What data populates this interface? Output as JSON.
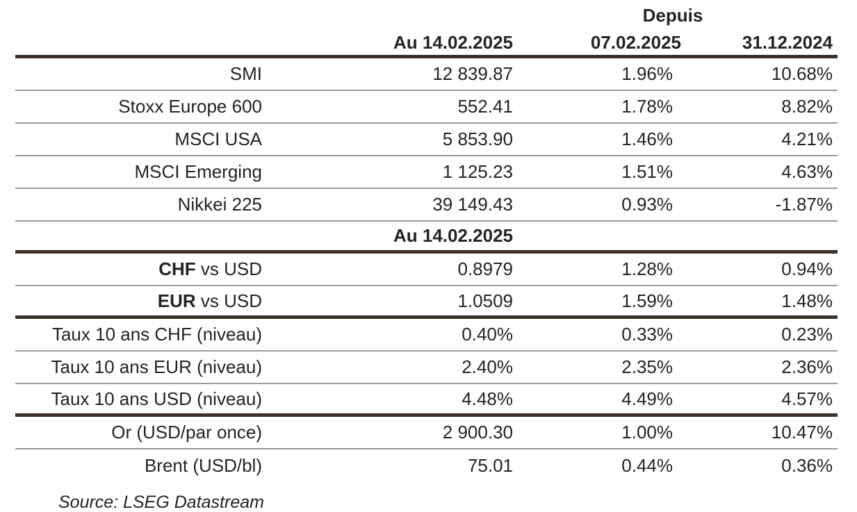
{
  "colors": {
    "text": "#262223",
    "thick_rule": "#3a3126",
    "thin_rule": "#9b9b9b",
    "background": "#ffffff"
  },
  "header": {
    "depuis_label": "Depuis",
    "col_date_main": "Au 14.02.2025",
    "col_date_week": "07.02.2025",
    "col_date_ytd": "31.12.2024"
  },
  "mid_header": {
    "label": "Au 14.02.2025"
  },
  "indices": [
    {
      "label": "SMI",
      "level": "12 839.87",
      "week": "1.96%",
      "ytd": "10.68%"
    },
    {
      "label": "Stoxx Europe 600",
      "level": "552.41",
      "week": "1.78%",
      "ytd": "8.82%"
    },
    {
      "label": "MSCI USA",
      "level": "5 853.90",
      "week": "1.46%",
      "ytd": "4.21%"
    },
    {
      "label": "MSCI Emerging",
      "level": "1 125.23",
      "week": "1.51%",
      "ytd": "4.63%"
    },
    {
      "label": "Nikkei 225",
      "level": "39 149.43",
      "week": "0.93%",
      "ytd": "-1.87%"
    }
  ],
  "fx": [
    {
      "label_bold": "CHF",
      "label_rest": " vs USD",
      "level": "0.8979",
      "week": "1.28%",
      "ytd": "0.94%"
    },
    {
      "label_bold": "EUR",
      "label_rest": " vs USD",
      "level": "1.0509",
      "week": "1.59%",
      "ytd": "1.48%"
    }
  ],
  "rates": [
    {
      "label": "Taux 10 ans CHF (niveau)",
      "level": "0.40%",
      "week": "0.33%",
      "ytd": "0.23%"
    },
    {
      "label": "Taux 10 ans EUR (niveau)",
      "level": "2.40%",
      "week": "2.35%",
      "ytd": "2.36%"
    },
    {
      "label": "Taux 10 ans USD (niveau)",
      "level": "4.48%",
      "week": "4.49%",
      "ytd": "4.57%"
    }
  ],
  "commodities": [
    {
      "label": "Or (USD/par once)",
      "level": "2 900.30",
      "week": "1.00%",
      "ytd": "10.47%"
    },
    {
      "label": "Brent (USD/bl)",
      "level": "75.01",
      "week": "0.44%",
      "ytd": "0.36%"
    }
  ],
  "source_note": "Source: LSEG Datastream",
  "chart_data": {
    "type": "table",
    "title": "",
    "columns": [
      "",
      "Au 14.02.2025",
      "Depuis 07.02.2025",
      "Depuis 31.12.2024"
    ],
    "depuis_header_spans": [
      "07.02.2025",
      "31.12.2024"
    ],
    "rows": [
      [
        "SMI",
        "12 839.87",
        "1.96%",
        "10.68%"
      ],
      [
        "Stoxx Europe 600",
        "552.41",
        "1.78%",
        "8.82%"
      ],
      [
        "MSCI USA",
        "5 853.90",
        "1.46%",
        "4.21%"
      ],
      [
        "MSCI Emerging",
        "1 125.23",
        "1.51%",
        "4.63%"
      ],
      [
        "Nikkei 225",
        "39 149.43",
        "0.93%",
        "-1.87%"
      ],
      [
        "CHF vs USD",
        "0.8979",
        "1.28%",
        "0.94%"
      ],
      [
        "EUR vs USD",
        "1.0509",
        "1.59%",
        "1.48%"
      ],
      [
        "Taux 10 ans CHF (niveau)",
        "0.40%",
        "0.33%",
        "0.23%"
      ],
      [
        "Taux 10 ans EUR (niveau)",
        "2.40%",
        "2.35%",
        "2.36%"
      ],
      [
        "Taux 10 ans USD (niveau)",
        "4.48%",
        "4.49%",
        "4.57%"
      ],
      [
        "Or (USD/par once)",
        "2 900.30",
        "1.00%",
        "10.47%"
      ],
      [
        "Brent (USD/bl)",
        "75.01",
        "0.44%",
        "0.36%"
      ]
    ],
    "section_breaks_after_row_index": [
      4,
      6,
      9
    ],
    "mid_section_header": "Au 14.02.2025",
    "source": "Source: LSEG Datastream",
    "legend_position": "none",
    "grid": "horizontal-rules"
  }
}
